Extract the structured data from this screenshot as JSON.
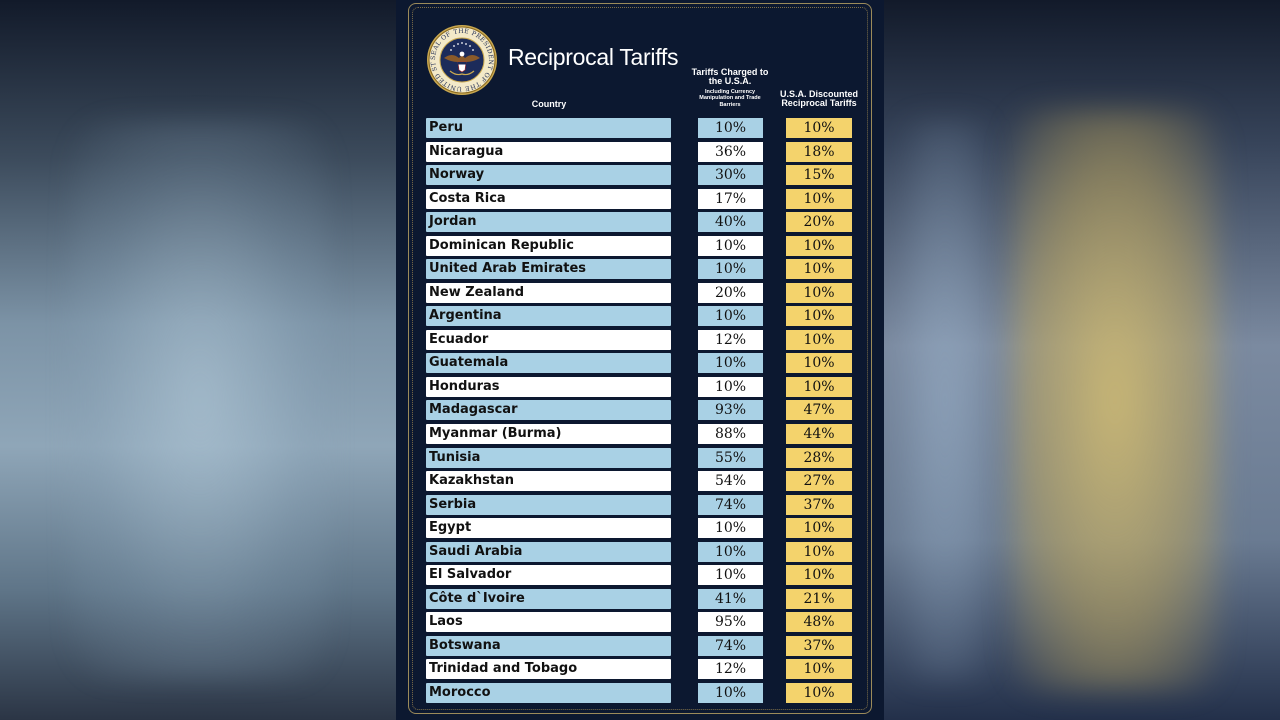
{
  "title": "Reciprocal Tariffs",
  "seal": {
    "ring_text": "SEAL OF THE PRESIDENT OF THE UNITED STATES"
  },
  "headers": {
    "country": "Country",
    "charged": "Tariffs Charged to the U.S.A.",
    "charged_sub": "Including Currency Manipulation and Trade Barriers",
    "discounted": "U.S.A. Discounted Reciprocal Tariffs"
  },
  "colors": {
    "row_blue": "#a9d1e5",
    "row_white": "#ffffff",
    "discount_gold": "#f4d36c",
    "poster_navy": "#0c1830"
  },
  "chart_data": {
    "type": "table",
    "title": "Reciprocal Tariffs",
    "columns": [
      "Country",
      "Tariffs Charged to the U.S.A.",
      "U.S.A. Discounted Reciprocal Tariffs"
    ],
    "rows": [
      {
        "country": "Peru",
        "charged": "10%",
        "discounted": "10%"
      },
      {
        "country": "Nicaragua",
        "charged": "36%",
        "discounted": "18%"
      },
      {
        "country": "Norway",
        "charged": "30%",
        "discounted": "15%"
      },
      {
        "country": "Costa Rica",
        "charged": "17%",
        "discounted": "10%"
      },
      {
        "country": "Jordan",
        "charged": "40%",
        "discounted": "20%"
      },
      {
        "country": "Dominican Republic",
        "charged": "10%",
        "discounted": "10%"
      },
      {
        "country": "United Arab Emirates",
        "charged": "10%",
        "discounted": "10%"
      },
      {
        "country": "New Zealand",
        "charged": "20%",
        "discounted": "10%"
      },
      {
        "country": "Argentina",
        "charged": "10%",
        "discounted": "10%"
      },
      {
        "country": "Ecuador",
        "charged": "12%",
        "discounted": "10%"
      },
      {
        "country": "Guatemala",
        "charged": "10%",
        "discounted": "10%"
      },
      {
        "country": "Honduras",
        "charged": "10%",
        "discounted": "10%"
      },
      {
        "country": "Madagascar",
        "charged": "93%",
        "discounted": "47%"
      },
      {
        "country": "Myanmar (Burma)",
        "charged": "88%",
        "discounted": "44%"
      },
      {
        "country": "Tunisia",
        "charged": "55%",
        "discounted": "28%"
      },
      {
        "country": "Kazakhstan",
        "charged": "54%",
        "discounted": "27%"
      },
      {
        "country": "Serbia",
        "charged": "74%",
        "discounted": "37%"
      },
      {
        "country": "Egypt",
        "charged": "10%",
        "discounted": "10%"
      },
      {
        "country": "Saudi Arabia",
        "charged": "10%",
        "discounted": "10%"
      },
      {
        "country": "El Salvador",
        "charged": "10%",
        "discounted": "10%"
      },
      {
        "country": "Côte d`Ivoire",
        "charged": "41%",
        "discounted": "21%"
      },
      {
        "country": "Laos",
        "charged": "95%",
        "discounted": "48%"
      },
      {
        "country": "Botswana",
        "charged": "74%",
        "discounted": "37%"
      },
      {
        "country": "Trinidad and Tobago",
        "charged": "12%",
        "discounted": "10%"
      },
      {
        "country": "Morocco",
        "charged": "10%",
        "discounted": "10%"
      }
    ]
  }
}
